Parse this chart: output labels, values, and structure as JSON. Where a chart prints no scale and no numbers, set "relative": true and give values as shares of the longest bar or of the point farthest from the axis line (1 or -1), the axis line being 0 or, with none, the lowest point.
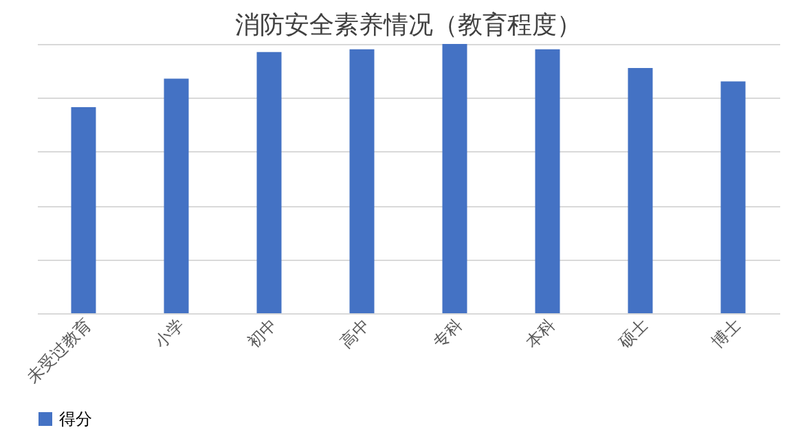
{
  "chart_data": {
    "type": "bar",
    "title": "消防安全素养情况（教育程度）",
    "categories": [
      "未受过教育",
      "小学",
      "初中",
      "高中",
      "专科",
      "本科",
      "硕士",
      "博士"
    ],
    "series": [
      {
        "name": "得分",
        "color": "#4472c4",
        "values": [
          0.765,
          0.871,
          0.97,
          0.98,
          1,
          0.98,
          0.911,
          0.861
        ]
      }
    ],
    "relative": true,
    "grid": "y",
    "legend": "bottom"
  }
}
